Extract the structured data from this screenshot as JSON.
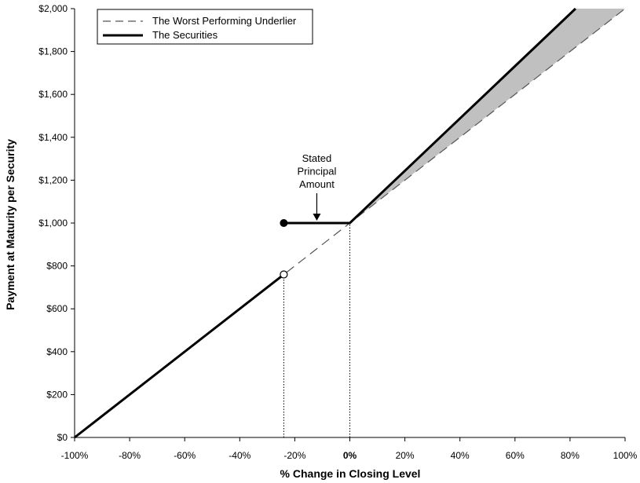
{
  "chart_data": {
    "type": "line",
    "xlabel": "% Change in Closing Level",
    "ylabel": "Payment at Maturity per Security",
    "xlim": [
      -100,
      100
    ],
    "ylim": [
      0,
      2000
    ],
    "x_ticks": [
      {
        "value": -100,
        "label": "-100%"
      },
      {
        "value": -80,
        "label": "-80%"
      },
      {
        "value": -60,
        "label": "-60%"
      },
      {
        "value": -40,
        "label": "-40%"
      },
      {
        "value": -20,
        "label": "-20%"
      },
      {
        "value": 0,
        "label": "0%"
      },
      {
        "value": 20,
        "label": "20%"
      },
      {
        "value": 40,
        "label": "40%"
      },
      {
        "value": 60,
        "label": "60%"
      },
      {
        "value": 80,
        "label": "80%"
      },
      {
        "value": 100,
        "label": "100%"
      }
    ],
    "y_ticks": [
      {
        "value": 0,
        "label": "$0"
      },
      {
        "value": 200,
        "label": "$200"
      },
      {
        "value": 400,
        "label": "$400"
      },
      {
        "value": 600,
        "label": "$600"
      },
      {
        "value": 800,
        "label": "$800"
      },
      {
        "value": 1000,
        "label": "$1,000"
      },
      {
        "value": 1200,
        "label": "$1,200"
      },
      {
        "value": 1400,
        "label": "$1,400"
      },
      {
        "value": 1600,
        "label": "$1,600"
      },
      {
        "value": 1800,
        "label": "$1,800"
      },
      {
        "value": 2000,
        "label": "$2,000"
      }
    ],
    "series": [
      {
        "name": "The Worst Performing Underlier",
        "style": "dashed",
        "color": "#555555",
        "points": [
          [
            -100,
            0
          ],
          [
            100,
            2000
          ]
        ]
      },
      {
        "name": "The Securities",
        "style": "solid",
        "color": "#000000",
        "segments": [
          [
            [
              -100,
              0
            ],
            [
              -24,
              760
            ]
          ],
          [
            [
              -24,
              1000
            ],
            [
              0,
              1000
            ],
            [
              82,
              2000
            ]
          ]
        ],
        "open_point": [
          -24,
          760
        ],
        "closed_point": [
          -24,
          1000
        ]
      }
    ],
    "shaded_region": {
      "color": "#c0c0c0",
      "points": [
        [
          0,
          1000
        ],
        [
          82,
          2000
        ],
        [
          100,
          2000
        ]
      ]
    },
    "reference_lines": [
      {
        "x": -24,
        "y_from": 0,
        "y_to": 760,
        "style": "dotted"
      },
      {
        "x": 0,
        "y_from": 0,
        "y_to": 1000,
        "style": "dotted"
      }
    ],
    "annotation": {
      "lines": [
        "Stated",
        "Principal",
        "Amount"
      ],
      "arrow_to": [
        -12,
        1000
      ]
    },
    "legend_position": "top-left",
    "grid": false
  }
}
